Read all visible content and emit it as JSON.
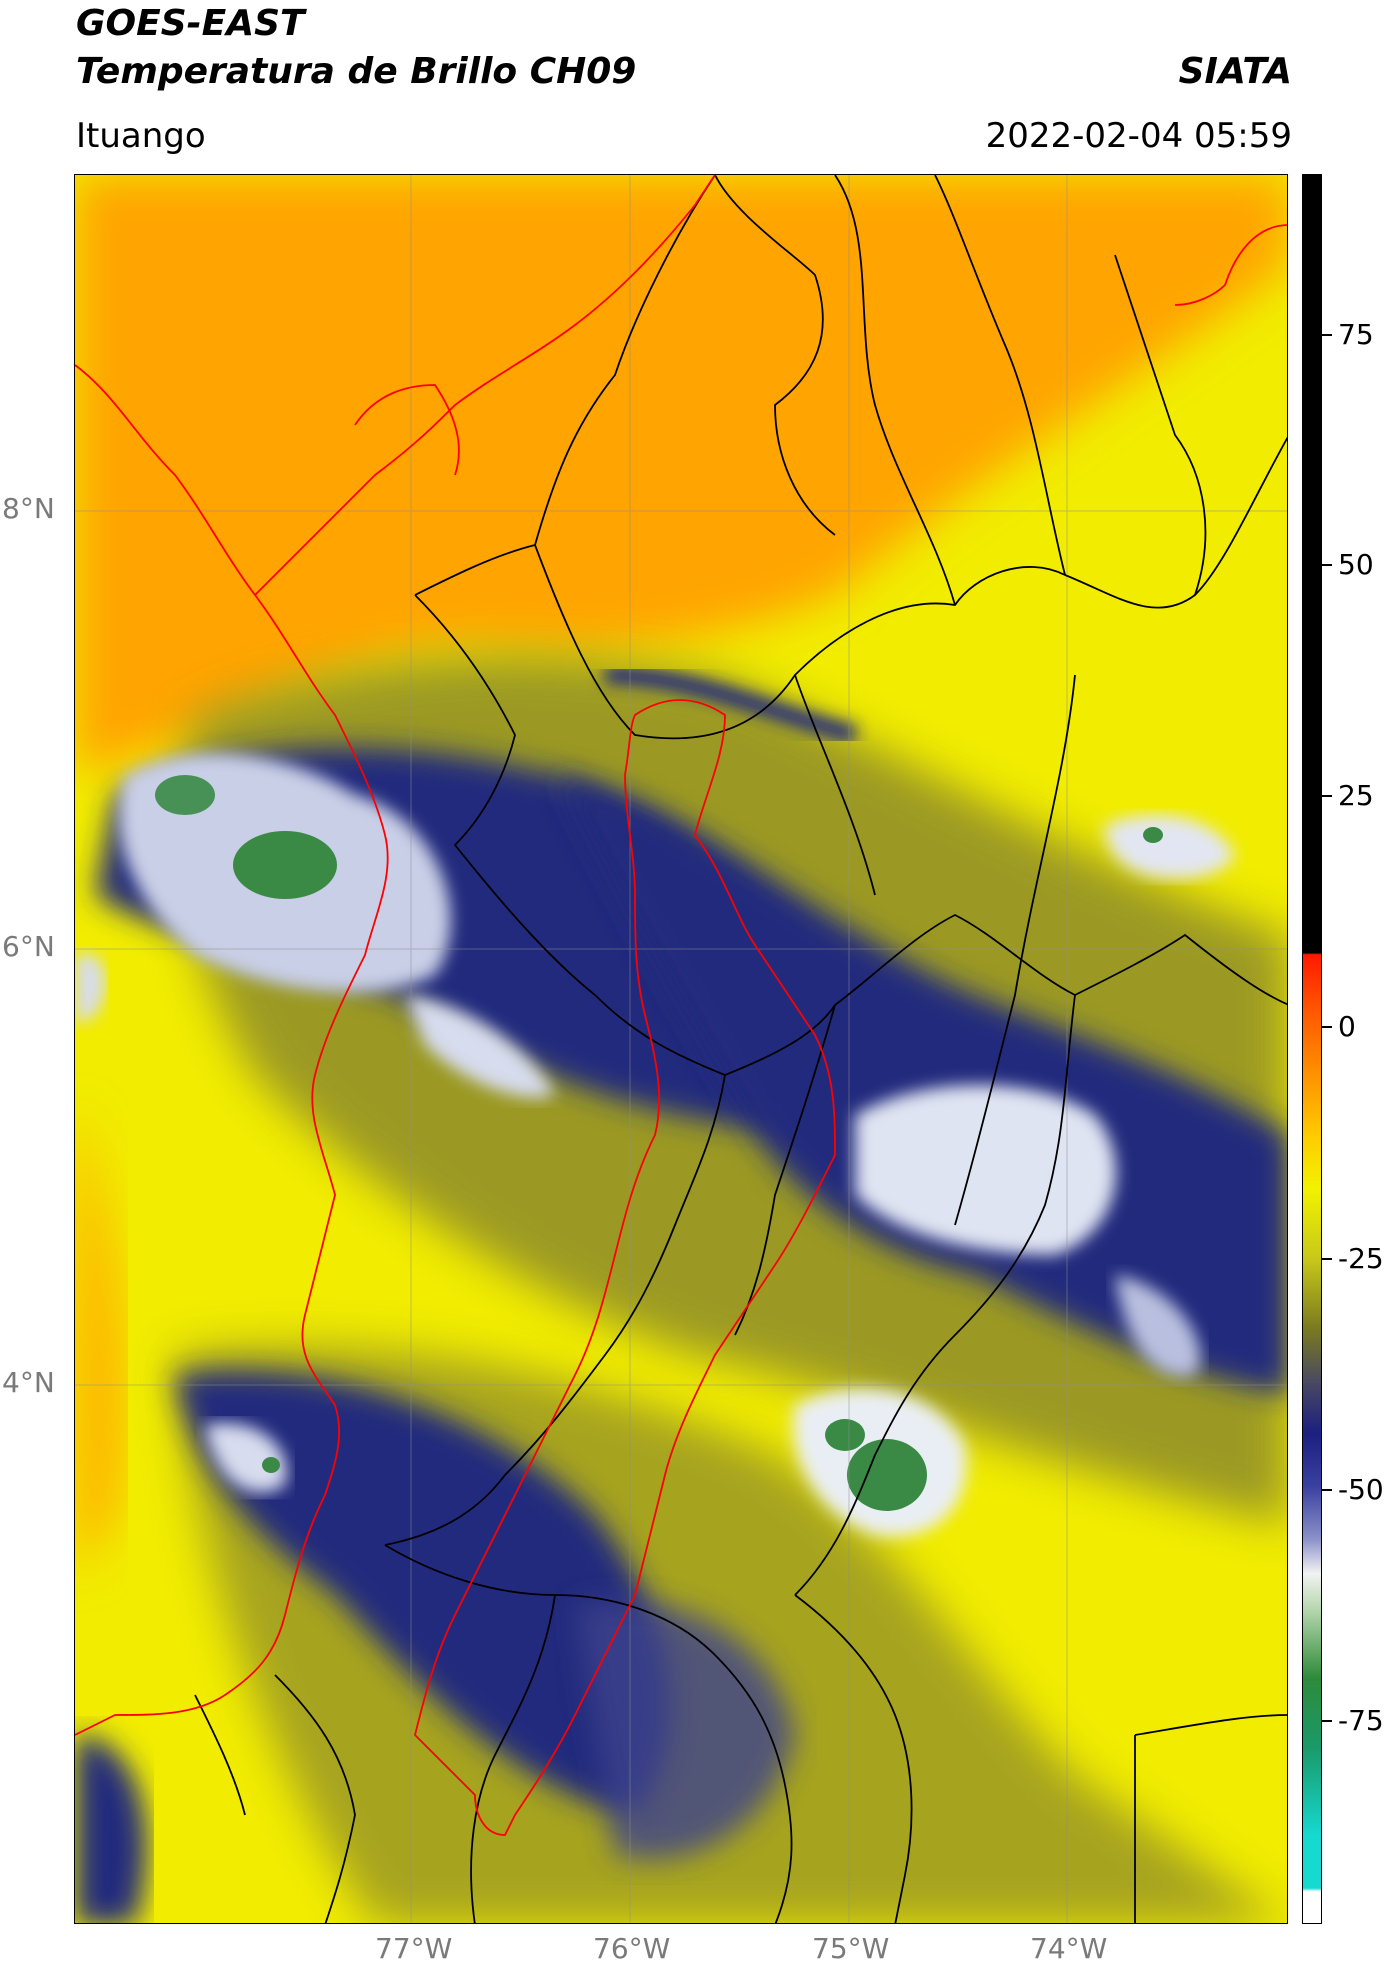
{
  "header": {
    "title_line1": "GOES-EAST",
    "title_line2": "Temperatura de Brillo CH09",
    "source": "SIATA",
    "location": "Ituango",
    "datetime": "2022-02-04 05:59"
  },
  "axes": {
    "latitude_ticks": [
      "8°N",
      "6°N",
      "4°N"
    ],
    "longitude_ticks": [
      "77°W",
      "76°W",
      "75°W",
      "74°W"
    ]
  },
  "colorbar": {
    "tick_labels": [
      "75",
      "50",
      "25",
      "0",
      "-25",
      "-50",
      "-75"
    ],
    "colors": {
      "black": "#000000",
      "red": "#ff1a00",
      "orange": "#ff9a00",
      "yellow": "#f2f200",
      "olive": "#7a7a20",
      "navy": "#1c1f80",
      "white": "#f2f2f2",
      "green": "#2e8a3a",
      "cyan": "#16d9d0"
    }
  },
  "map": {
    "background_colors": {
      "warm_orange": "#ffa400",
      "yellow": "#f1ec00",
      "olive": "#8d8b2a",
      "navy": "#232c7d",
      "white_cloud": "#e9eef4",
      "green_core": "#3a8a46"
    },
    "boundary_colors": {
      "department": "#000000",
      "region": "#ff0000",
      "coast": "#ff0000"
    }
  }
}
